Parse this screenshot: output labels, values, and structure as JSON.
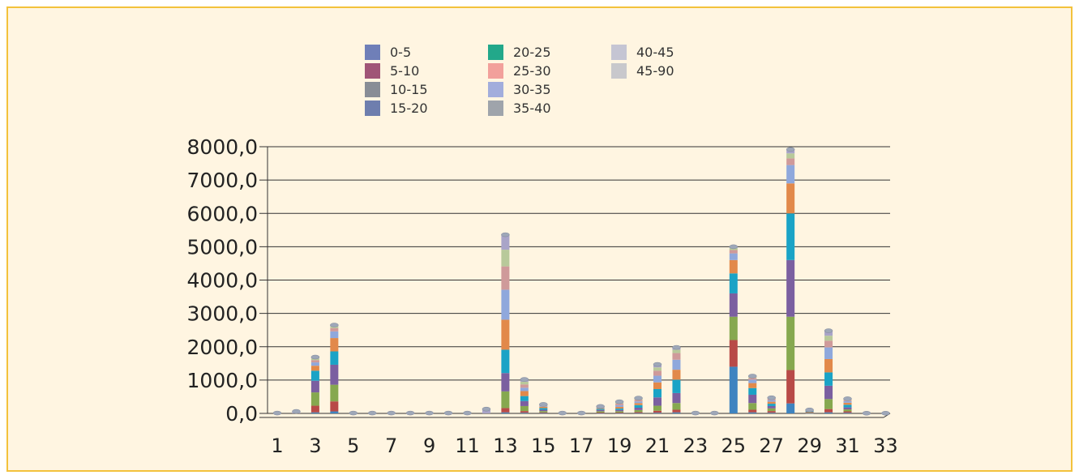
{
  "chart_data": {
    "type": "bar",
    "stacked": true,
    "grid": true,
    "legend_position": "top",
    "ylim": [
      0,
      8000
    ],
    "yticks": [
      0,
      1000,
      2000,
      3000,
      4000,
      5000,
      6000,
      7000,
      8000
    ],
    "ytick_labels": [
      "0,0",
      "1000,0",
      "2000,0",
      "3000,0",
      "4000,0",
      "5000,0",
      "6000,0",
      "7000,0",
      "8000,0"
    ],
    "categories": [
      "1",
      "2",
      "3",
      "4",
      "5",
      "6",
      "7",
      "8",
      "9",
      "10",
      "11",
      "12",
      "13",
      "14",
      "15",
      "16",
      "17",
      "18",
      "19",
      "20",
      "21",
      "22",
      "23",
      "24",
      "25",
      "26",
      "27",
      "28",
      "29",
      "30",
      "31",
      "32",
      "33"
    ],
    "xtick_labels": [
      "1",
      "3",
      "5",
      "7",
      "9",
      "11",
      "13",
      "15",
      "17",
      "19",
      "21",
      "23",
      "25",
      "27",
      "29",
      "31",
      "33"
    ],
    "segment_colors": [
      "#3e84c0",
      "#b84a47",
      "#86a84f",
      "#7b5fa0",
      "#1aa3c6",
      "#e2894a",
      "#8fa8dc",
      "#cf9a9a",
      "#b8c99a",
      "#a9a4c8"
    ],
    "series": [
      {
        "name": "0-5",
        "color": "#6f7fb8",
        "values": [
          0,
          0,
          30,
          60,
          0,
          0,
          0,
          0,
          0,
          0,
          0,
          0,
          30,
          20,
          10,
          0,
          0,
          5,
          5,
          10,
          20,
          30,
          0,
          0,
          1400,
          30,
          20,
          300,
          5,
          30,
          20,
          0,
          0
        ]
      },
      {
        "name": "5-10",
        "color": "#a05577",
        "values": [
          0,
          0,
          200,
          300,
          0,
          0,
          0,
          0,
          0,
          0,
          0,
          0,
          130,
          50,
          20,
          0,
          0,
          20,
          20,
          30,
          60,
          80,
          0,
          0,
          800,
          80,
          50,
          1000,
          10,
          100,
          40,
          0,
          0
        ]
      },
      {
        "name": "10-15",
        "color": "#888d96",
        "values": [
          0,
          0,
          400,
          500,
          0,
          0,
          0,
          0,
          0,
          0,
          0,
          0,
          500,
          150,
          40,
          0,
          0,
          40,
          40,
          60,
          150,
          200,
          0,
          0,
          700,
          200,
          80,
          1600,
          20,
          300,
          60,
          0,
          0
        ]
      },
      {
        "name": "15-20",
        "color": "#6e7eae",
        "values": [
          0,
          0,
          350,
          600,
          0,
          0,
          0,
          0,
          0,
          0,
          0,
          0,
          550,
          150,
          40,
          0,
          0,
          40,
          40,
          70,
          250,
          300,
          0,
          0,
          700,
          250,
          70,
          1700,
          20,
          400,
          60,
          0,
          0
        ]
      },
      {
        "name": "20-25",
        "color": "#22a88a",
        "values": [
          0,
          0,
          300,
          400,
          0,
          0,
          0,
          0,
          0,
          0,
          0,
          0,
          700,
          150,
          50,
          0,
          0,
          30,
          40,
          80,
          250,
          400,
          0,
          0,
          600,
          200,
          70,
          1400,
          20,
          400,
          80,
          0,
          0
        ]
      },
      {
        "name": "25-30",
        "color": "#f2a09b",
        "values": [
          0,
          0,
          150,
          400,
          0,
          0,
          0,
          0,
          0,
          0,
          0,
          0,
          900,
          150,
          40,
          0,
          0,
          20,
          50,
          60,
          200,
          300,
          0,
          0,
          400,
          150,
          60,
          900,
          10,
          400,
          60,
          0,
          0
        ]
      },
      {
        "name": "30-35",
        "color": "#a2addc",
        "values": [
          0,
          0,
          100,
          200,
          0,
          0,
          0,
          0,
          0,
          0,
          0,
          0,
          900,
          100,
          30,
          0,
          0,
          20,
          50,
          50,
          200,
          300,
          0,
          0,
          200,
          100,
          50,
          550,
          5,
          350,
          50,
          0,
          0
        ]
      },
      {
        "name": "35-40",
        "color": "#9fa4ab",
        "values": [
          0,
          0,
          70,
          100,
          0,
          0,
          0,
          0,
          0,
          0,
          0,
          0,
          700,
          100,
          20,
          0,
          0,
          10,
          50,
          50,
          150,
          200,
          0,
          0,
          100,
          50,
          40,
          200,
          5,
          200,
          30,
          0,
          0
        ]
      },
      {
        "name": "40-45",
        "color": "#c5c5d3",
        "values": [
          0,
          0,
          50,
          50,
          0,
          0,
          0,
          0,
          0,
          0,
          0,
          0,
          500,
          80,
          10,
          0,
          0,
          10,
          30,
          30,
          100,
          100,
          0,
          0,
          60,
          30,
          20,
          150,
          5,
          150,
          20,
          0,
          0
        ]
      },
      {
        "name": "45-90",
        "color": "#c8c8cc",
        "values": [
          10,
          60,
          40,
          40,
          10,
          10,
          10,
          10,
          10,
          10,
          10,
          130,
          450,
          70,
          10,
          10,
          10,
          15,
          25,
          20,
          90,
          70,
          10,
          10,
          40,
          30,
          10,
          120,
          5,
          150,
          20,
          5,
          5
        ]
      }
    ]
  }
}
